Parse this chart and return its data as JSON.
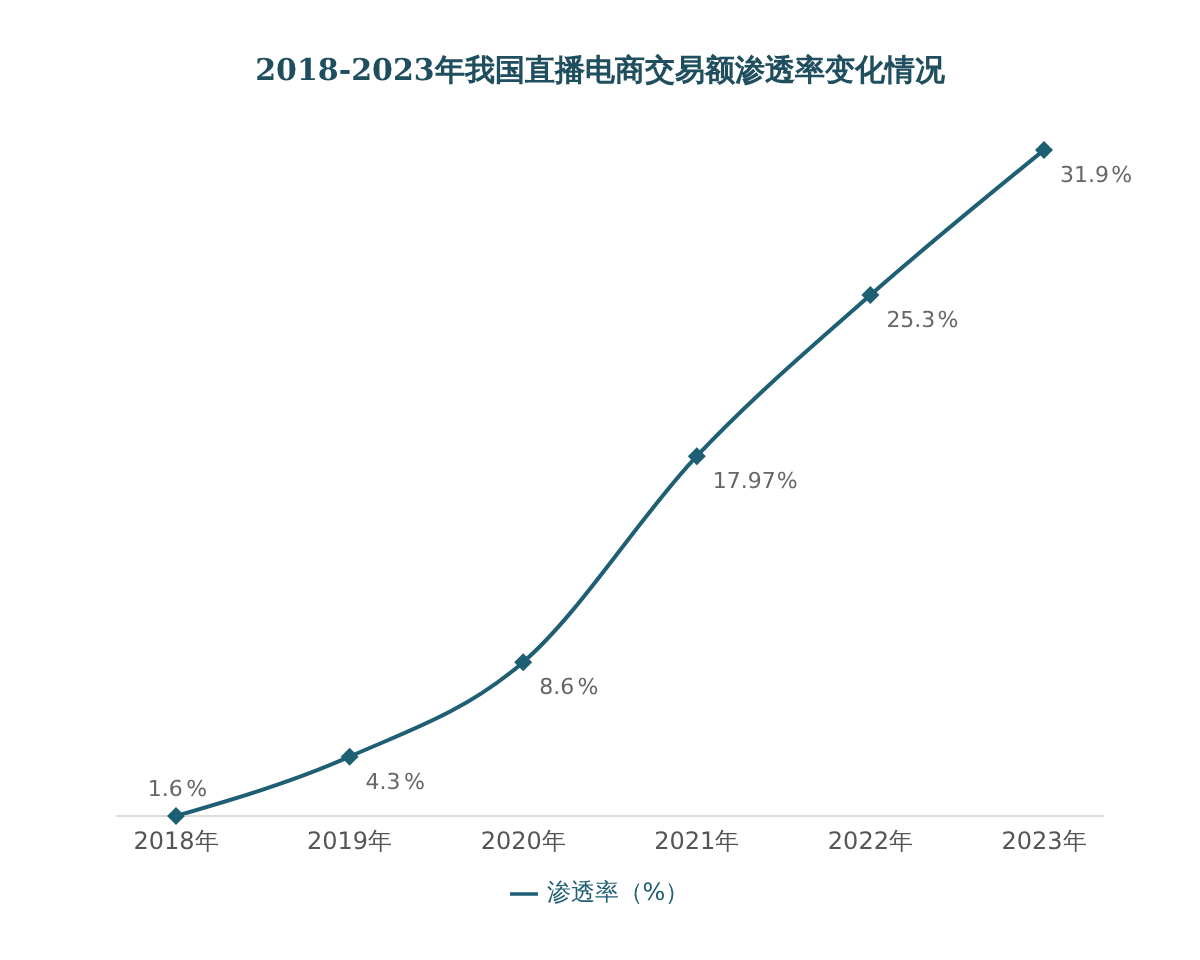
{
  "chart_data": {
    "type": "line",
    "title": "2018-2023年我国直播电商交易额渗透率变化情况",
    "categories": [
      "2018年",
      "2019年",
      "2020年",
      "2021年",
      "2022年",
      "2023年"
    ],
    "series": [
      {
        "name": "渗透率（%）",
        "color": "#1f5f73",
        "values": [
          1.6,
          4.3,
          8.6,
          17.97,
          25.3,
          31.9
        ]
      }
    ],
    "data_labels": true,
    "value_labels": [
      "1.6%",
      "4.3%",
      "8.6%",
      "17.97%",
      "25.3%",
      "31.9%"
    ],
    "legend": "bottom",
    "grid": false,
    "marker": "diamond",
    "line_style": "solid"
  }
}
